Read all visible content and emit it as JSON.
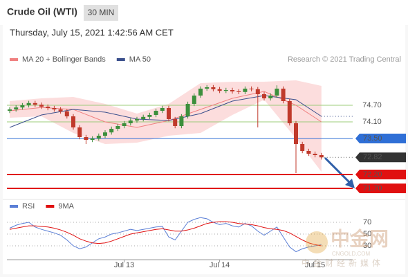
{
  "header": {
    "title": "Crude Oil (WTI)",
    "interval": "30 MIN",
    "timestamp": "Thursday, July 15, 2021 1:42:56 AM CET",
    "credit": "Research © 2021 Trading Central"
  },
  "watermark": {
    "brand": "中金网",
    "site": "CNGOLD.COM",
    "tagline": "中金财经新媒体"
  },
  "chart_data": [
    {
      "type": "candlestick",
      "ylim": [
        71.5,
        76.0
      ],
      "up_color": "#3c8f3c",
      "down_color": "#c0392b",
      "open": [
        74.5,
        74.55,
        74.62,
        74.7,
        74.78,
        74.72,
        74.65,
        74.6,
        74.55,
        74.48,
        74.3,
        73.9,
        73.55,
        73.45,
        73.5,
        73.6,
        73.72,
        73.85,
        73.95,
        74.05,
        74.15,
        74.2,
        74.28,
        74.35,
        74.5,
        74.6,
        74.2,
        73.95,
        74.3,
        74.75,
        75.05,
        75.3,
        75.35,
        75.28,
        75.22,
        75.25,
        75.2,
        75.18,
        75.3,
        75.28,
        75.1,
        74.95,
        75.05,
        75.3,
        74.85,
        74.05,
        73.3,
        73.05,
        72.95,
        72.9
      ],
      "high": [
        74.63,
        74.7,
        74.78,
        74.86,
        74.86,
        74.8,
        74.73,
        74.68,
        74.63,
        74.56,
        74.38,
        73.98,
        73.63,
        73.58,
        73.68,
        73.8,
        73.93,
        74.03,
        74.13,
        74.23,
        74.28,
        74.36,
        74.43,
        74.58,
        74.68,
        74.68,
        74.28,
        74.38,
        74.83,
        75.13,
        75.38,
        75.43,
        75.43,
        75.36,
        75.33,
        75.33,
        75.28,
        75.38,
        75.38,
        75.36,
        75.18,
        75.13,
        75.42,
        75.38,
        74.93,
        74.13,
        73.38,
        73.13,
        73.03,
        72.98
      ],
      "low": [
        74.42,
        74.47,
        74.54,
        74.62,
        74.64,
        74.57,
        74.52,
        74.47,
        74.4,
        74.22,
        73.82,
        73.47,
        73.3,
        73.37,
        73.42,
        73.52,
        73.64,
        73.77,
        73.87,
        73.97,
        74.07,
        74.12,
        74.2,
        74.27,
        74.42,
        74.12,
        73.87,
        73.87,
        74.22,
        74.67,
        74.97,
        75.22,
        75.2,
        75.14,
        75.14,
        75.12,
        75.1,
        75.1,
        75.2,
        73.9,
        74.87,
        74.87,
        74.97,
        74.77,
        73.97,
        72.25,
        72.97,
        72.87,
        72.82,
        72.74
      ],
      "close": [
        74.55,
        74.62,
        74.7,
        74.78,
        74.72,
        74.65,
        74.6,
        74.55,
        74.48,
        74.3,
        73.9,
        73.55,
        73.45,
        73.5,
        73.6,
        73.72,
        73.85,
        73.95,
        74.05,
        74.15,
        74.2,
        74.28,
        74.35,
        74.5,
        74.6,
        74.2,
        73.95,
        74.3,
        74.75,
        75.05,
        75.3,
        75.35,
        75.28,
        75.22,
        75.25,
        75.2,
        75.18,
        75.3,
        75.28,
        75.1,
        74.95,
        75.05,
        75.3,
        74.85,
        74.05,
        73.3,
        73.05,
        72.95,
        72.9,
        72.82
      ],
      "ma_x": [
        0,
        5,
        10,
        15,
        20,
        25,
        30,
        35,
        40,
        45,
        49
      ],
      "series": [
        {
          "name": "MA 20 + Bollinger Bands",
          "color": "#f08080",
          "band_color": "#fbd5d5",
          "values": [
            74.5,
            74.62,
            74.55,
            74.1,
            73.9,
            74.15,
            74.55,
            74.95,
            75.2,
            74.7,
            74.1
          ],
          "upper": [
            74.85,
            74.95,
            75.0,
            74.75,
            74.4,
            74.75,
            75.5,
            75.55,
            75.55,
            75.6,
            75.4
          ],
          "lower": [
            74.25,
            74.3,
            73.7,
            73.3,
            73.35,
            73.6,
            73.7,
            74.35,
            74.9,
            73.5,
            72.3
          ]
        },
        {
          "name": "MA 50",
          "color": "#3a4f8c",
          "values": [
            73.9,
            74.35,
            74.55,
            74.45,
            74.2,
            74.15,
            74.4,
            74.85,
            75.05,
            74.9,
            74.3
          ]
        }
      ],
      "levels": [
        {
          "value": 74.7,
          "label": "74.70",
          "color": "#9ccc7a",
          "style": "text"
        },
        {
          "value": 74.1,
          "label": "74.10",
          "color": "#9ccc7a",
          "style": "text"
        },
        {
          "value": 73.5,
          "label": "73.50",
          "color": "#2f6fd6",
          "style": "box"
        },
        {
          "value": 72.82,
          "label": "72.82",
          "color": "#333333",
          "style": "price"
        },
        {
          "value": 72.2,
          "label": "72.20",
          "color": "#e01010",
          "style": "box"
        },
        {
          "value": 71.7,
          "label": "71.70",
          "color": "#e01010",
          "style": "box"
        }
      ],
      "xlabels": [
        {
          "index": 18,
          "label": "Jul 13"
        },
        {
          "index": 33,
          "label": "Jul 14"
        },
        {
          "index": 48,
          "label": "Jul 15"
        }
      ]
    },
    {
      "type": "line",
      "ylim": [
        10,
        80
      ],
      "yticks": [
        70,
        50,
        30
      ],
      "series": [
        {
          "name": "RSI",
          "color": "#5b7fd6",
          "values": [
            60,
            65,
            68,
            70,
            62,
            58,
            55,
            52,
            48,
            40,
            30,
            25,
            28,
            35,
            42,
            45,
            50,
            52,
            55,
            58,
            56,
            58,
            60,
            62,
            63,
            45,
            40,
            55,
            70,
            75,
            78,
            76,
            70,
            66,
            68,
            64,
            62,
            68,
            64,
            55,
            48,
            55,
            62,
            45,
            28,
            20,
            25,
            28,
            30,
            32
          ]
        },
        {
          "name": "9MA",
          "color": "#e01010",
          "values": [
            58,
            60,
            62,
            64,
            64,
            63,
            62,
            60,
            57,
            53,
            48,
            42,
            38,
            35,
            34,
            35,
            38,
            42,
            46,
            50,
            52,
            54,
            56,
            58,
            59,
            57,
            55,
            55,
            57,
            60,
            64,
            68,
            70,
            71,
            71,
            70,
            68,
            67,
            66,
            64,
            61,
            59,
            58,
            56,
            52,
            46,
            40,
            35,
            32,
            30
          ]
        }
      ]
    }
  ]
}
